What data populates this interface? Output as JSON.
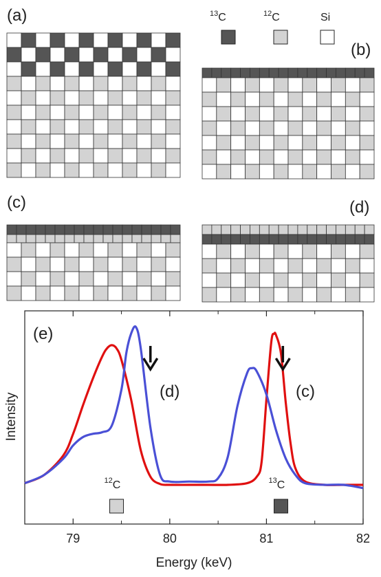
{
  "legend": [
    {
      "label_sup": "13",
      "label": "C",
      "color": "#555555"
    },
    {
      "label_sup": "12",
      "label": "C",
      "color": "#d3d3d3"
    },
    {
      "label_sup": "",
      "label": "Si",
      "color": "#ffffff"
    }
  ],
  "panels": {
    "a": {
      "label": "(a)",
      "rows": [
        "13C/Si",
        "13C/Si",
        "13C/Si",
        "12C/Si",
        "12C/Si",
        "12C/Si",
        "12C/Si",
        "12C/Si",
        "12C/Si",
        "12C/Si"
      ]
    },
    "b": {
      "label": "(b)",
      "rows": [
        "13C-thin",
        "12C/Si",
        "12C/Si",
        "12C/Si",
        "12C/Si",
        "12C/Si",
        "12C/Si",
        "12C/Si"
      ]
    },
    "c": {
      "label": "(c)",
      "rows": [
        "13C-thin",
        "12C/Si-thin",
        "12C/Si",
        "12C/Si",
        "12C/Si",
        "12C/Si"
      ]
    },
    "d": {
      "label": "(d)",
      "rows": [
        "12C/Si-thin",
        "13C-thin",
        "12C/Si",
        "12C/Si",
        "12C/Si",
        "12C/Si"
      ]
    }
  },
  "chart_data": {
    "type": "line",
    "panel_label": "(e)",
    "xlabel": "Energy (keV)",
    "ylabel": "Intensity",
    "xlim": [
      78.5,
      82
    ],
    "ylim": [
      0,
      1.1
    ],
    "xticks": [
      "79",
      "80",
      "81",
      "82"
    ],
    "series": [
      {
        "name": "(c)",
        "color": "#e01010",
        "x": [
          78.5,
          78.7,
          78.9,
          79.0,
          79.1,
          79.2,
          79.3,
          79.35,
          79.4,
          79.45,
          79.5,
          79.6,
          79.7,
          79.8,
          79.9,
          80.0,
          80.2,
          80.4,
          80.6,
          80.8,
          80.9,
          80.95,
          81.0,
          81.05,
          81.08,
          81.1,
          81.15,
          81.2,
          81.25,
          81.3,
          81.4,
          81.6,
          81.8,
          82.0
        ],
        "y": [
          0.01,
          0.06,
          0.18,
          0.31,
          0.48,
          0.64,
          0.78,
          0.83,
          0.85,
          0.83,
          0.76,
          0.52,
          0.21,
          0.05,
          0.005,
          0.0,
          0.0,
          0.0,
          0.0,
          0.01,
          0.05,
          0.14,
          0.52,
          0.87,
          0.92,
          0.91,
          0.8,
          0.5,
          0.25,
          0.1,
          0.02,
          0.0,
          0.0,
          0.0
        ]
      },
      {
        "name": "(d)",
        "color": "#4a50d6",
        "x": [
          78.5,
          78.7,
          78.9,
          79.0,
          79.1,
          79.2,
          79.3,
          79.4,
          79.5,
          79.55,
          79.6,
          79.65,
          79.7,
          79.8,
          79.9,
          80.0,
          80.2,
          80.4,
          80.5,
          80.6,
          80.7,
          80.8,
          80.85,
          80.9,
          81.0,
          81.1,
          81.2,
          81.3,
          81.4,
          81.6,
          81.8,
          82.0
        ],
        "y": [
          0.01,
          0.06,
          0.16,
          0.24,
          0.29,
          0.31,
          0.32,
          0.36,
          0.58,
          0.8,
          0.92,
          0.96,
          0.83,
          0.35,
          0.06,
          0.02,
          0.02,
          0.02,
          0.04,
          0.17,
          0.48,
          0.68,
          0.71,
          0.69,
          0.55,
          0.33,
          0.16,
          0.06,
          0.01,
          0.0,
          0.0,
          -0.02
        ]
      }
    ],
    "arrows_at": [
      79.8,
      81.17
    ],
    "isotope_markers": [
      {
        "label_sup": "12",
        "label": "C",
        "x": 79.45,
        "color": "#d3d3d3"
      },
      {
        "label_sup": "13",
        "label": "C",
        "x": 81.15,
        "color": "#555555"
      }
    ]
  }
}
